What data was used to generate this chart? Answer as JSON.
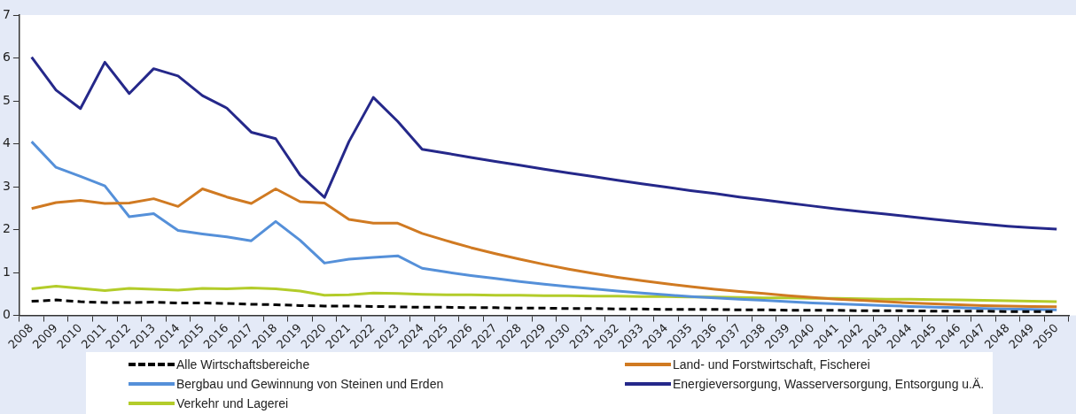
{
  "chart_data": {
    "type": "line",
    "categories": [
      "2008",
      "2009",
      "2010",
      "2011",
      "2012",
      "2013",
      "2014",
      "2015",
      "2016",
      "2017",
      "2018",
      "2019",
      "2020",
      "2021",
      "2022",
      "2023",
      "2024",
      "2025",
      "2026",
      "2027",
      "2028",
      "2029",
      "2030",
      "2031",
      "2032",
      "2033",
      "2034",
      "2035",
      "2036",
      "2037",
      "2038",
      "2039",
      "2040",
      "2041",
      "2042",
      "2043",
      "2044",
      "2045",
      "2046",
      "2047",
      "2048",
      "2049",
      "2050"
    ],
    "series": [
      {
        "name": "Alle Wirtschaftsbereiche",
        "color": "#000000",
        "line_style": "dashed",
        "values": [
          0.33,
          0.36,
          0.32,
          0.3,
          0.3,
          0.31,
          0.29,
          0.29,
          0.28,
          0.26,
          0.25,
          0.23,
          0.22,
          0.22,
          0.21,
          0.2,
          0.19,
          0.19,
          0.18,
          0.18,
          0.17,
          0.17,
          0.16,
          0.16,
          0.15,
          0.15,
          0.14,
          0.14,
          0.14,
          0.13,
          0.13,
          0.12,
          0.12,
          0.12,
          0.11,
          0.11,
          0.11,
          0.1,
          0.1,
          0.1,
          0.09,
          0.09,
          0.09
        ]
      },
      {
        "name": "Land- und Forstwirtschaft, Fischerei",
        "color": "#d07a22",
        "line_style": "solid",
        "values": [
          2.49,
          2.63,
          2.68,
          2.61,
          2.62,
          2.72,
          2.54,
          2.95,
          2.76,
          2.61,
          2.95,
          2.65,
          2.62,
          2.24,
          2.15,
          2.15,
          1.91,
          1.74,
          1.58,
          1.44,
          1.31,
          1.19,
          1.08,
          0.98,
          0.89,
          0.81,
          0.74,
          0.67,
          0.61,
          0.56,
          0.51,
          0.46,
          0.42,
          0.38,
          0.35,
          0.32,
          0.29,
          0.27,
          0.25,
          0.23,
          0.22,
          0.21,
          0.2
        ]
      },
      {
        "name": "Bergbau und Gewinnung von Steinen und Erden",
        "color": "#5590d9",
        "line_style": "solid",
        "values": [
          4.05,
          3.45,
          3.24,
          3.02,
          2.3,
          2.37,
          1.98,
          1.9,
          1.83,
          1.74,
          2.19,
          1.75,
          1.22,
          1.31,
          1.35,
          1.39,
          1.1,
          1.01,
          0.93,
          0.86,
          0.79,
          0.73,
          0.67,
          0.62,
          0.57,
          0.52,
          0.48,
          0.44,
          0.41,
          0.38,
          0.35,
          0.32,
          0.29,
          0.27,
          0.25,
          0.23,
          0.21,
          0.19,
          0.18,
          0.16,
          0.15,
          0.14,
          0.13
        ]
      },
      {
        "name": "Energieversorgung, Wasserversorgung, Entsorgung u.Ä.",
        "color": "#25288a",
        "line_style": "solid",
        "values": [
          6.02,
          5.25,
          4.82,
          5.9,
          5.17,
          5.75,
          5.58,
          5.12,
          4.83,
          4.27,
          4.12,
          3.27,
          2.75,
          4.05,
          5.08,
          4.52,
          3.87,
          3.78,
          3.68,
          3.59,
          3.5,
          3.41,
          3.32,
          3.24,
          3.15,
          3.07,
          2.99,
          2.91,
          2.84,
          2.76,
          2.69,
          2.62,
          2.55,
          2.48,
          2.42,
          2.36,
          2.3,
          2.24,
          2.18,
          2.13,
          2.08,
          2.04,
          2.01
        ]
      },
      {
        "name": "Verkehr und Lagerei",
        "color": "#b3cc2a",
        "line_style": "solid",
        "values": [
          0.62,
          0.68,
          0.63,
          0.58,
          0.63,
          0.61,
          0.59,
          0.63,
          0.62,
          0.64,
          0.62,
          0.57,
          0.47,
          0.48,
          0.52,
          0.51,
          0.49,
          0.48,
          0.48,
          0.47,
          0.47,
          0.46,
          0.46,
          0.45,
          0.45,
          0.44,
          0.44,
          0.43,
          0.43,
          0.42,
          0.41,
          0.41,
          0.4,
          0.4,
          0.39,
          0.38,
          0.38,
          0.37,
          0.36,
          0.35,
          0.34,
          0.33,
          0.32
        ]
      }
    ],
    "ylim": [
      0,
      7
    ],
    "yticks": [
      0,
      1,
      2,
      3,
      4,
      5,
      6,
      7
    ],
    "grid": false,
    "legend": "bottom",
    "marker": "none"
  }
}
